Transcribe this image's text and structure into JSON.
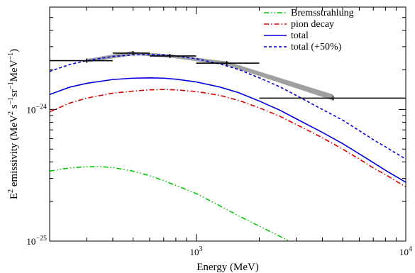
{
  "chart_data": {
    "type": "line",
    "title": "",
    "xlabel": "Energy (MeV)",
    "ylabel_parts": [
      "E",
      "2",
      " emissivity (MeV",
      "2",
      " s",
      "−1",
      "sr",
      "−1",
      "MeV",
      "−1",
      ")"
    ],
    "xscale": "log",
    "yscale": "log",
    "xlim": [
      200,
      10000
    ],
    "ylim": [
      1e-25,
      6e-24
    ],
    "x_ticks": [
      {
        "value": 1000,
        "base": "10",
        "exp": "3"
      },
      {
        "value": 10000,
        "base": "10",
        "exp": "4"
      }
    ],
    "y_ticks": [
      {
        "value": 1e-25,
        "base": "10",
        "exp": "−25"
      },
      {
        "value": 1e-24,
        "base": "10",
        "exp": "−24"
      }
    ],
    "legend_position": "top-right",
    "series": [
      {
        "name": "Bremsstrahlung",
        "color": "#00cc00",
        "dash": "dash-dot-dot",
        "x": [
          200,
          250,
          300,
          350,
          400,
          500,
          600,
          700,
          800,
          1000,
          1300,
          1600,
          2000,
          2500,
          3000
        ],
        "y": [
          3.4e-25,
          3.6e-25,
          3.67e-25,
          3.68e-25,
          3.62e-25,
          3.4e-25,
          3.14e-25,
          2.88e-25,
          2.65e-25,
          2.3e-25,
          1.85e-25,
          1.55e-25,
          1.3e-25,
          1.09e-25,
          9.4e-26
        ]
      },
      {
        "name": "pion decay",
        "color": "#dd0000",
        "dash": "dash-dot",
        "x": [
          200,
          250,
          300,
          400,
          500,
          600,
          700,
          800,
          1000,
          1300,
          1600,
          2000,
          2500,
          3000,
          4000,
          5000,
          6000,
          7000,
          8000,
          10000
        ],
        "y": [
          9.6e-25,
          1.12e-24,
          1.22e-24,
          1.33e-24,
          1.38e-24,
          1.41e-24,
          1.42e-24,
          1.41e-24,
          1.37e-24,
          1.28e-24,
          1.17e-24,
          1.03e-24,
          8.9e-25,
          7.7e-25,
          6.1e-25,
          5e-25,
          4.2e-25,
          3.6e-25,
          3.2e-25,
          2.58e-25
        ]
      },
      {
        "name": "total",
        "color": "#0000dd",
        "dash": "solid",
        "x": [
          200,
          250,
          300,
          400,
          500,
          600,
          700,
          800,
          1000,
          1300,
          1600,
          2000,
          2500,
          3000,
          4000,
          5000,
          6000,
          7000,
          8000,
          10000
        ],
        "y": [
          1.3e-24,
          1.48e-24,
          1.58e-24,
          1.69e-24,
          1.73e-24,
          1.74e-24,
          1.73e-24,
          1.7e-24,
          1.62e-24,
          1.48e-24,
          1.34e-24,
          1.16e-24,
          9.9e-25,
          8.5e-25,
          6.7e-25,
          5.5e-25,
          4.6e-25,
          3.95e-25,
          3.45e-25,
          2.8e-25
        ]
      },
      {
        "name": "total (+50%)",
        "color": "#0000dd",
        "dash": "dashed",
        "x": [
          200,
          250,
          300,
          400,
          500,
          600,
          700,
          800,
          1000,
          1300,
          1600,
          2000,
          2500,
          3000,
          4000,
          5000,
          6000,
          7000,
          8000,
          10000
        ],
        "y": [
          1.95e-24,
          2.2e-24,
          2.35e-24,
          2.53e-24,
          2.6e-24,
          2.61e-24,
          2.6e-24,
          2.55e-24,
          2.43e-24,
          2.22e-24,
          2.01e-24,
          1.74e-24,
          1.49e-24,
          1.28e-24,
          1e-24,
          8.3e-25,
          6.9e-25,
          5.9e-25,
          5.2e-25,
          4.2e-25
        ]
      }
    ],
    "data_points": [
      {
        "x": 300,
        "xmin": 200,
        "xmax": 400,
        "y": 2.35e-24
      },
      {
        "x": 500,
        "xmin": 400,
        "xmax": 600,
        "y": 2.68e-24
      },
      {
        "x": 750,
        "xmin": 600,
        "xmax": 1000,
        "y": 2.55e-24
      },
      {
        "x": 1400,
        "xmin": 1000,
        "xmax": 2000,
        "y": 2.25e-24
      },
      {
        "x": 4500,
        "xmin": 2000,
        "xmax": 10000,
        "y": 1.22e-24
      }
    ],
    "systematic_bands": [
      [
        {
          "x": 300,
          "lo": 2.28e-24,
          "hi": 2.42e-24
        },
        {
          "x": 500,
          "lo": 2.58e-24,
          "hi": 2.78e-24
        }
      ],
      [
        {
          "x": 500,
          "lo": 2.6e-24,
          "hi": 2.74e-24
        },
        {
          "x": 750,
          "lo": 2.47e-24,
          "hi": 2.62e-24
        }
      ],
      [
        {
          "x": 750,
          "lo": 2.48e-24,
          "hi": 2.62e-24
        },
        {
          "x": 1400,
          "lo": 2.17e-24,
          "hi": 2.32e-24
        }
      ],
      [
        {
          "x": 1400,
          "lo": 2.17e-24,
          "hi": 2.32e-24
        },
        {
          "x": 4500,
          "lo": 1.17e-24,
          "hi": 1.3e-24
        }
      ]
    ]
  }
}
